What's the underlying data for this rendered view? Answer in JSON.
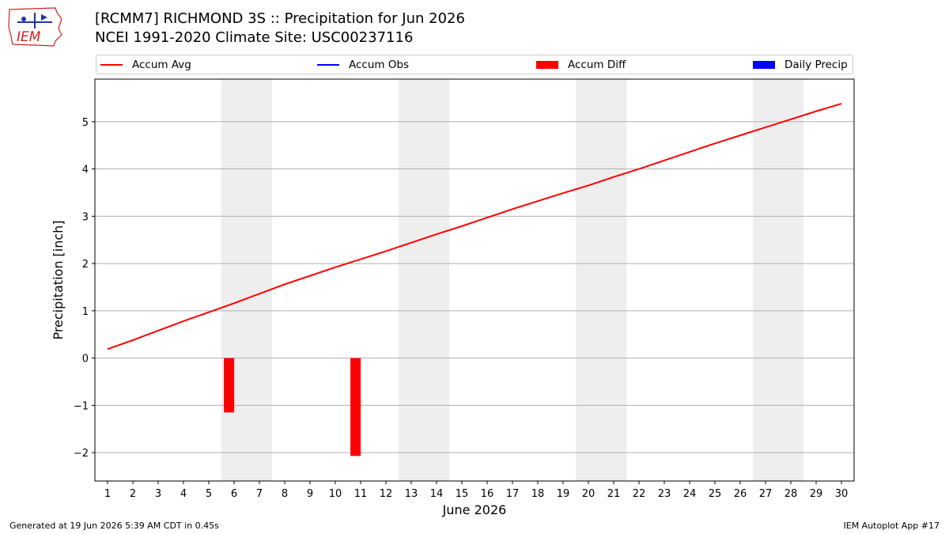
{
  "header": {
    "title_line1": "[RCMM7] RICHMOND 3S :: Precipitation for Jun 2026",
    "title_line2": "NCEI 1991-2020 Climate Site: USC00237116"
  },
  "logo": {
    "text": "IEM"
  },
  "legend": [
    {
      "label": "Accum Avg",
      "color": "#ff0000",
      "kind": "line"
    },
    {
      "label": "Accum Obs",
      "color": "#0000ff",
      "kind": "line"
    },
    {
      "label": "Accum Diff",
      "color": "#ff0000",
      "kind": "box"
    },
    {
      "label": "Daily Precip",
      "color": "#0000ff",
      "kind": "box"
    }
  ],
  "footer": {
    "left": "Generated at 19 Jun 2026 5:39 AM CDT in 0.45s",
    "right": "IEM Autoplot App #17"
  },
  "chart_data": {
    "type": "line",
    "xlabel": "June 2026",
    "ylabel": "Precipitation [inch]",
    "x": [
      1,
      2,
      3,
      4,
      5,
      6,
      7,
      8,
      9,
      10,
      11,
      12,
      13,
      14,
      15,
      16,
      17,
      18,
      19,
      20,
      21,
      22,
      23,
      24,
      25,
      26,
      27,
      28,
      29,
      30
    ],
    "xlim": [
      0.5,
      30.5
    ],
    "ylim": [
      -2.6,
      5.9
    ],
    "yticks": [
      -2,
      -1,
      0,
      1,
      2,
      3,
      4,
      5
    ],
    "grid": "horizontal",
    "weekend_shading": [
      [
        5.5,
        7.5
      ],
      [
        12.5,
        14.5
      ],
      [
        19.5,
        21.5
      ],
      [
        26.5,
        28.5
      ]
    ],
    "series": [
      {
        "name": "Accum Avg",
        "type": "line",
        "color": "#ff0000",
        "values": [
          0.19,
          0.38,
          0.58,
          0.78,
          0.97,
          1.16,
          1.36,
          1.56,
          1.74,
          1.92,
          2.09,
          2.26,
          2.44,
          2.62,
          2.79,
          2.97,
          3.15,
          3.32,
          3.49,
          3.65,
          3.83,
          4.0,
          4.18,
          4.36,
          4.54,
          4.71,
          4.88,
          5.05,
          5.22,
          5.38
        ]
      },
      {
        "name": "Accum Diff",
        "type": "bar",
        "color": "#ff0000",
        "x": [
          5.8,
          10.8
        ],
        "values": [
          -1.15,
          -2.07
        ]
      }
    ]
  }
}
